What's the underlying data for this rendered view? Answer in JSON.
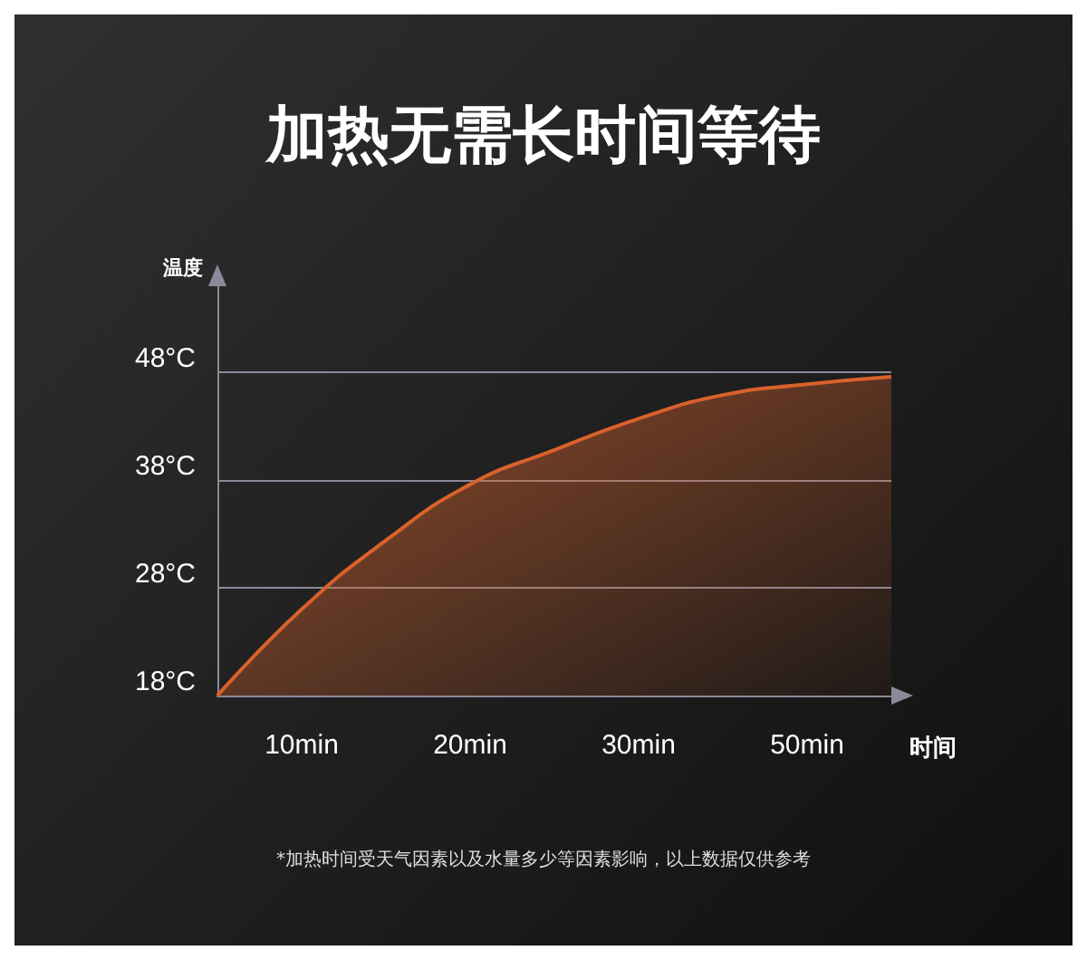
{
  "chart_data": {
    "type": "area",
    "title": "加热无需长时间等待",
    "xlabel": "时间",
    "ylabel": "温度",
    "annotations": [
      "*加热时间受天气因素以及水量多少等因素影响，以上数据仅供参考"
    ],
    "categories": [
      null,
      "10min",
      null,
      "20min",
      null,
      "30min",
      null,
      "50min",
      null
    ],
    "ylim": [
      18,
      56
    ],
    "yticks": [
      {
        "value": 18,
        "label": "18°C"
      },
      {
        "value": 28,
        "label": "28°C"
      },
      {
        "value": 38,
        "label": "38°C"
      },
      {
        "value": 48,
        "label": "48°C"
      }
    ],
    "grid": "y",
    "marker": "none",
    "series": [
      {
        "color": "#d9622b",
        "values": [
          18,
          26,
          32.4,
          37.6,
          40.8,
          43.7,
          45.9,
          46.9,
          47.6
        ]
      }
    ]
  }
}
